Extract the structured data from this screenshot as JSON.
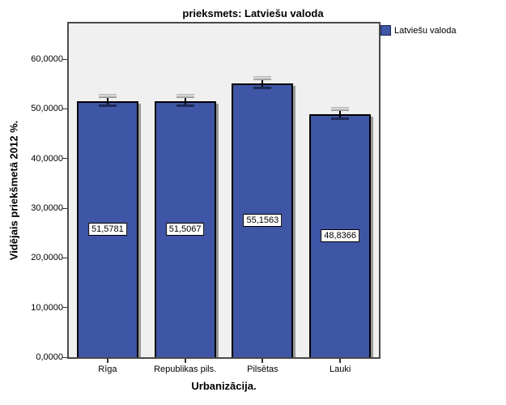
{
  "chart": {
    "title": "prieksmets: Latviešu valoda",
    "legend": {
      "items": [
        {
          "label": "Latviešu valoda",
          "color": "#3f55a5"
        }
      ]
    },
    "y_axis": {
      "title": "Vidējais priekšmetā 2012 %."
    },
    "x_axis": {
      "title": "Urbanizācija."
    }
  },
  "chart_data": {
    "type": "bar",
    "title": "prieksmets: Latviešu valoda",
    "categories": [
      "Rīga",
      "Republikas pils.",
      "Pilsētas",
      "Lauki"
    ],
    "series": [
      {
        "name": "Latviešu valoda",
        "values": [
          51.5781,
          51.5067,
          55.1563,
          48.8366
        ],
        "value_labels": [
          "51,5781",
          "51,5067",
          "55,1563",
          "48,8366"
        ]
      }
    ],
    "error_bars": {
      "shown": true,
      "approx_half_width": 0.8
    },
    "xlabel": "Urbanizācija.",
    "ylabel": "Vidējais priekšmetā 2012 %.",
    "ylim": [
      0,
      67
    ],
    "yticks": [
      0,
      10,
      20,
      30,
      40,
      50,
      60
    ],
    "ytick_labels": [
      "0,0000",
      "10,0000",
      "20,0000",
      "30,0000",
      "40,0000",
      "50,0000",
      "60,0000"
    ],
    "legend_position": "top-right",
    "grid": false,
    "bar_color": "#3f55a5",
    "bar_border_color": "#000000",
    "plot_background": "#f0f0f0",
    "value_label_position": "middle-of-bar"
  }
}
